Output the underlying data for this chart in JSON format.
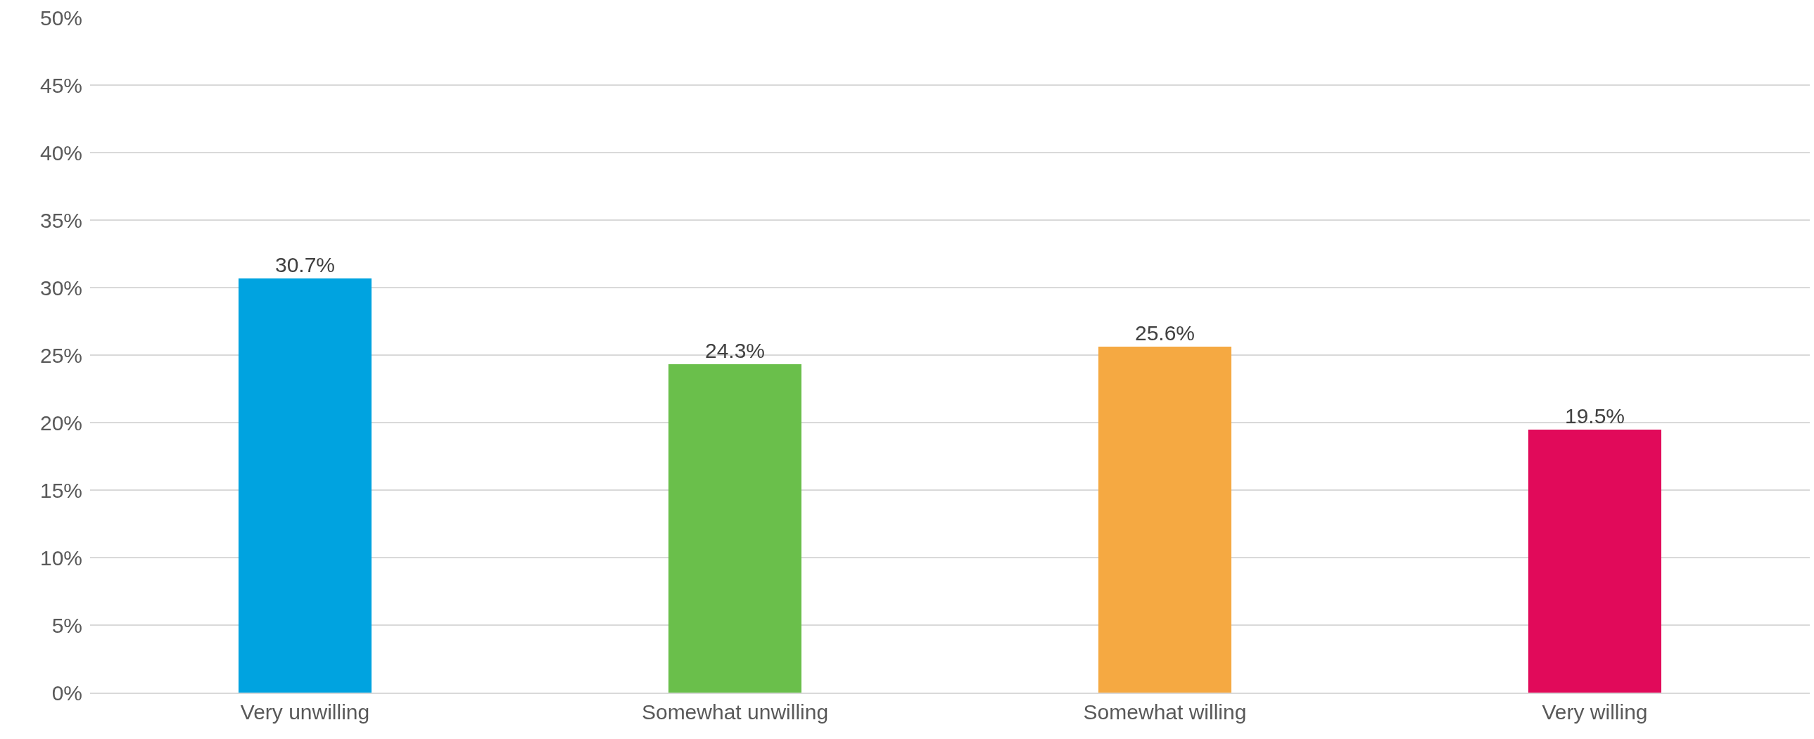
{
  "chart_data": {
    "type": "bar",
    "categories": [
      "Very unwilling",
      "Somewhat unwilling",
      "Somewhat willing",
      "Very willing"
    ],
    "values": [
      30.7,
      24.3,
      25.6,
      19.5
    ],
    "colors": [
      "#00a3e0",
      "#6abf4b",
      "#f5a942",
      "#e10a5a"
    ],
    "value_labels": [
      "30.7%",
      "24.3%",
      "25.6%",
      "19.5%"
    ],
    "ylim": [
      0,
      50
    ],
    "yticks": [
      {
        "value": 0,
        "label": "0%"
      },
      {
        "value": 5,
        "label": "5%"
      },
      {
        "value": 10,
        "label": "10%"
      },
      {
        "value": 15,
        "label": "15%"
      },
      {
        "value": 20,
        "label": "20%"
      },
      {
        "value": 25,
        "label": "25%"
      },
      {
        "value": 30,
        "label": "30%"
      },
      {
        "value": 35,
        "label": "35%"
      },
      {
        "value": 40,
        "label": "40%"
      },
      {
        "value": 45,
        "label": "45%"
      },
      {
        "value": 50,
        "label": "50%"
      }
    ],
    "grid": "y"
  }
}
